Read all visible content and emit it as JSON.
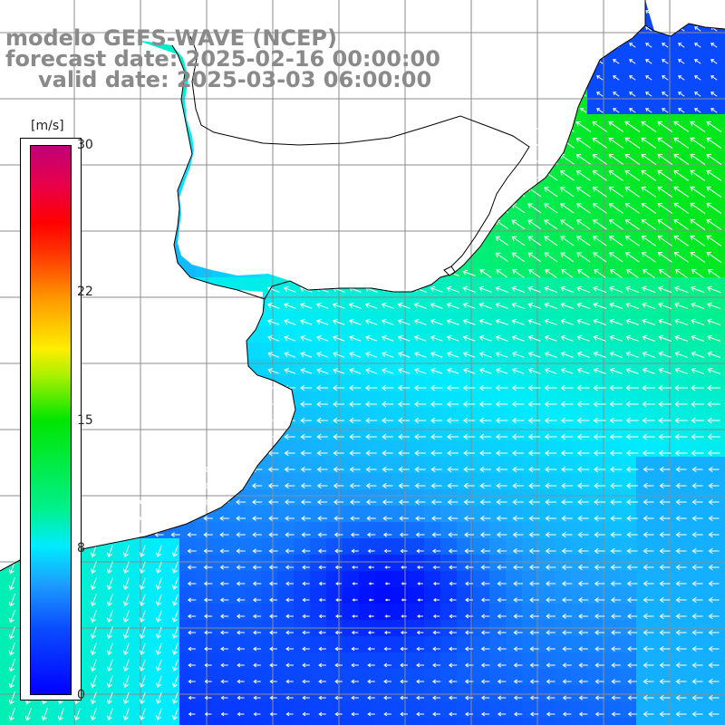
{
  "title": {
    "line1": "modelo GEFS-WAVE (NCEP)",
    "line2": "forecast date: 2025-02-16 00:00:00",
    "line3": "valid date: 2025-03-03 06:00:00"
  },
  "colorbar": {
    "units": "[m/s]",
    "min": 0,
    "max": 30,
    "ticks": [
      {
        "label": "30",
        "value": 30
      },
      {
        "label": "22",
        "value": 22
      },
      {
        "label": "15",
        "value": 15
      },
      {
        "label": "8",
        "value": 8
      },
      {
        "label": "0",
        "value": 0
      }
    ]
  },
  "map": {
    "colors": {
      "land": "#ffffff",
      "coast": "#000000",
      "grid": "#8c8c8c",
      "arrow": "#ffffff",
      "low_speed": "#0000ff",
      "high_speed": "#00e600"
    }
  }
}
